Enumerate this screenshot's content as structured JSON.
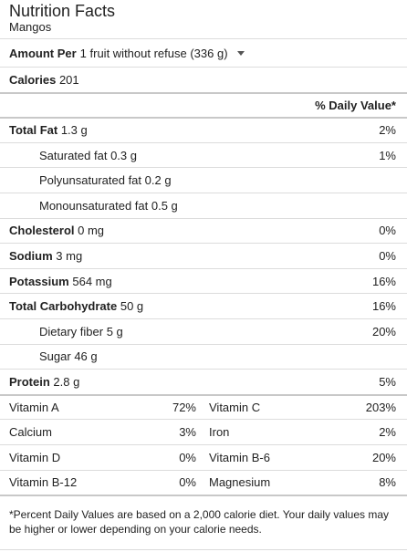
{
  "header": {
    "title": "Nutrition Facts",
    "food": "Mangos"
  },
  "serving": {
    "amount_label": "Amount Per",
    "value": "1 fruit without refuse (336 g)"
  },
  "calories": {
    "label": "Calories",
    "value": "201"
  },
  "daily_value_header": "% Daily Value*",
  "nutrients": [
    {
      "label": "Total Fat",
      "amount": "1.3 g",
      "dv": "2%"
    },
    {
      "label": "Saturated fat",
      "amount": "0.3 g",
      "dv": "1%"
    },
    {
      "label": "Polyunsaturated fat",
      "amount": "0.2 g",
      "dv": ""
    },
    {
      "label": "Monounsaturated fat",
      "amount": "0.5 g",
      "dv": ""
    },
    {
      "label": "Cholesterol",
      "amount": "0 mg",
      "dv": "0%"
    },
    {
      "label": "Sodium",
      "amount": "3 mg",
      "dv": "0%"
    },
    {
      "label": "Potassium",
      "amount": "564 mg",
      "dv": "16%"
    },
    {
      "label": "Total Carbohydrate",
      "amount": "50 g",
      "dv": "16%"
    },
    {
      "label": "Dietary fiber",
      "amount": "5 g",
      "dv": "20%"
    },
    {
      "label": "Sugar",
      "amount": "46 g",
      "dv": ""
    },
    {
      "label": "Protein",
      "amount": "2.8 g",
      "dv": "5%"
    }
  ],
  "vitamins": [
    {
      "left_label": "Vitamin A",
      "left_value": "72%",
      "right_label": "Vitamin C",
      "right_value": "203%"
    },
    {
      "left_label": "Calcium",
      "left_value": "3%",
      "right_label": "Iron",
      "right_value": "2%"
    },
    {
      "left_label": "Vitamin D",
      "left_value": "0%",
      "right_label": "Vitamin B-6",
      "right_value": "20%"
    },
    {
      "left_label": "Vitamin B-12",
      "left_value": "0%",
      "right_label": "Magnesium",
      "right_value": "8%"
    }
  ],
  "footnote": "*Percent Daily Values are based on a 2,000 calorie diet. Your daily values may be higher or lower depending on your calorie needs."
}
